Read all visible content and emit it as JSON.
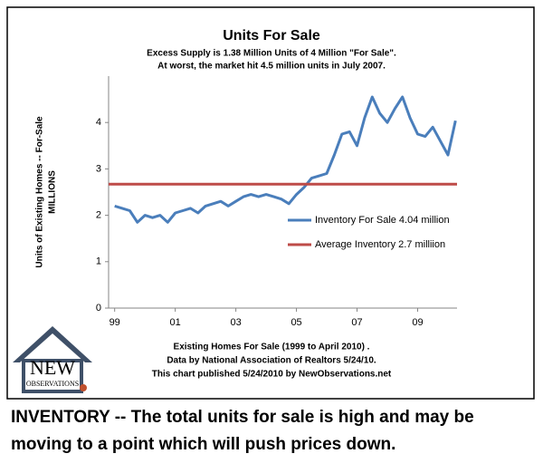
{
  "chart_data": {
    "type": "line",
    "title": "Units For Sale",
    "subtitle": [
      "Excess Supply is 1.38 Million Units of 4 Million \"For Sale\".",
      "At worst, the market hit 4.5 million units in July 2007."
    ],
    "y_label": [
      "Units of Existing Homes -- For-Sale",
      "MILLIONS"
    ],
    "notes": [
      "Existing Homes For Sale (1999 to April 2010) .",
      "Data by National Association of Realtors 5/24/10.",
      "This chart published 5/24/2010 by NewObservations.net"
    ],
    "series": [
      {
        "name": "Inventory For Sale 4.04 million",
        "color": "#4a7ebb",
        "x": [
          1999,
          1999.25,
          1999.5,
          1999.75,
          2000,
          2000.25,
          2000.5,
          2000.75,
          2001,
          2001.25,
          2001.5,
          2001.75,
          2002,
          2002.25,
          2002.5,
          2002.75,
          2003,
          2003.25,
          2003.5,
          2003.75,
          2004,
          2004.25,
          2004.5,
          2004.75,
          2005,
          2005.25,
          2005.5,
          2005.75,
          2006,
          2006.25,
          2006.5,
          2006.75,
          2007,
          2007.25,
          2007.5,
          2007.75,
          2008,
          2008.25,
          2008.5,
          2008.75,
          2009,
          2009.25,
          2009.5,
          2009.75,
          2010,
          2010.25
        ],
        "values": [
          2.2,
          2.15,
          2.1,
          1.85,
          2.0,
          1.95,
          2.0,
          1.85,
          2.05,
          2.1,
          2.15,
          2.05,
          2.2,
          2.25,
          2.3,
          2.2,
          2.3,
          2.4,
          2.45,
          2.4,
          2.45,
          2.4,
          2.35,
          2.25,
          2.45,
          2.6,
          2.8,
          2.85,
          2.9,
          3.3,
          3.75,
          3.8,
          3.5,
          4.1,
          4.55,
          4.2,
          4.0,
          4.3,
          4.55,
          4.1,
          3.75,
          3.7,
          3.9,
          3.6,
          3.3,
          4.04
        ]
      },
      {
        "name": "Average Inventory 2.7 milliion",
        "color": "#be4b48",
        "x": [
          1998.8,
          2010.3
        ],
        "values": [
          2.67,
          2.67
        ]
      }
    ],
    "xlim": [
      1998.8,
      2010.3
    ],
    "xticks": [
      {
        "value": 1999,
        "label": "99"
      },
      {
        "value": 2001,
        "label": "01"
      },
      {
        "value": 2003,
        "label": "03"
      },
      {
        "value": 2005,
        "label": "05"
      },
      {
        "value": 2007,
        "label": "07"
      },
      {
        "value": 2009,
        "label": "09"
      }
    ],
    "ylim": [
      0,
      5
    ],
    "yticks": [
      0,
      1,
      2,
      3,
      4
    ]
  },
  "logo": {
    "text": "NEW",
    "subtext": "OBSERVATIONS"
  },
  "caption": "INVENTORY -- The total units for sale is high and may be moving to a point which will push prices down."
}
